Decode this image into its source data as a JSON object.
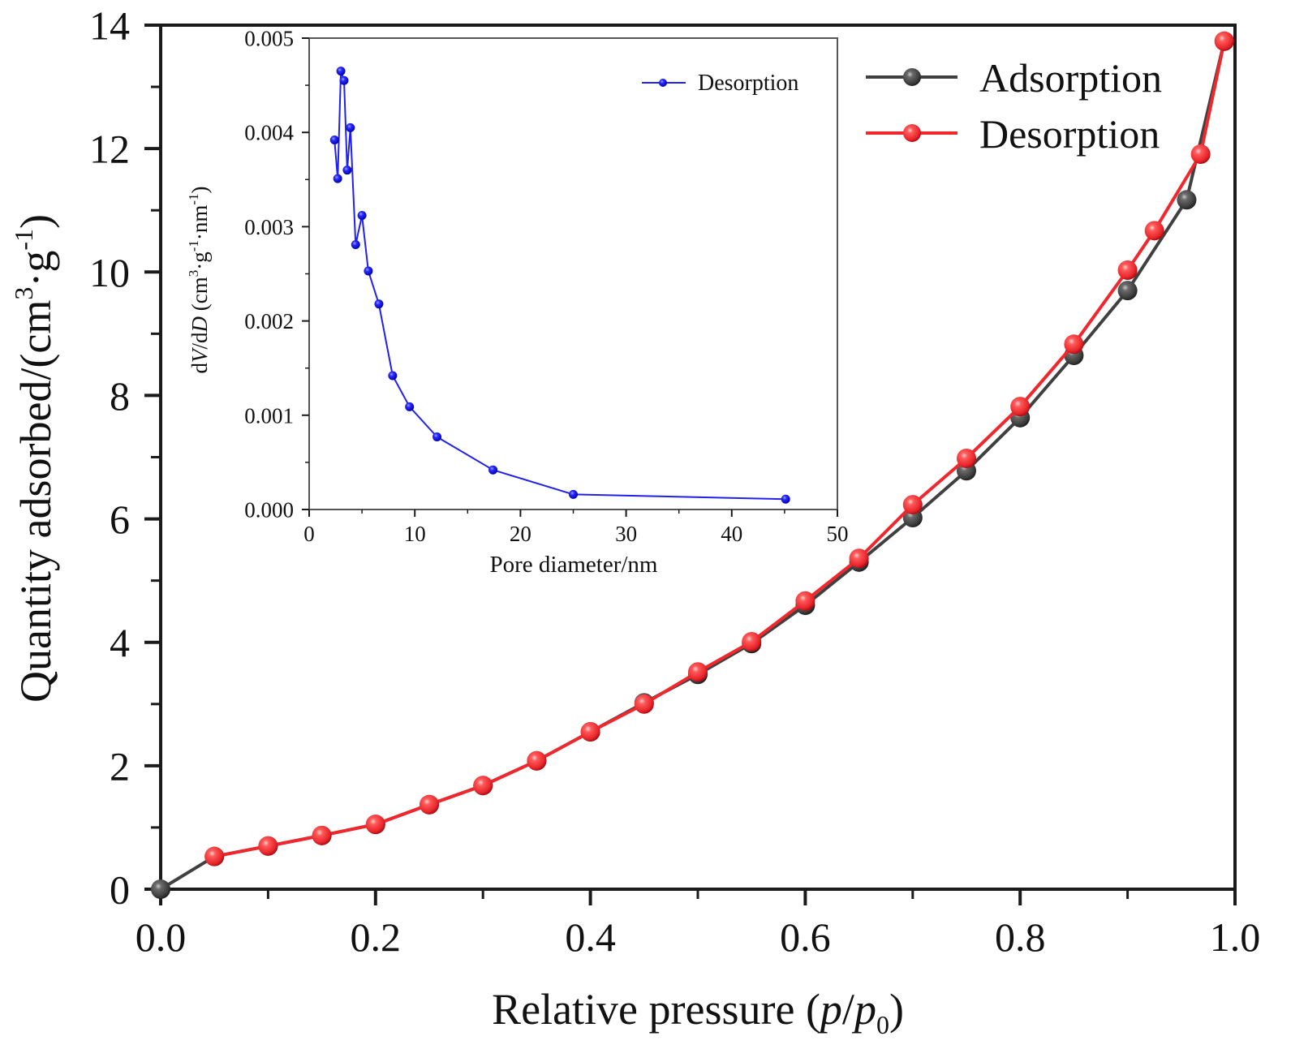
{
  "chart_data": [
    {
      "id": "main",
      "type": "line",
      "title": "",
      "xlabel": "Relative pressure (p/p0)",
      "xlabel_parts": [
        "Relative pressure (",
        "p",
        "/",
        "p",
        "0",
        ")"
      ],
      "ylabel": "Quantity adsorbed/(cm3·g-1)",
      "ylabel_parts": [
        "Quantity adsorbed/(cm",
        "3",
        "·g",
        "-1",
        ")"
      ],
      "xlim": [
        0.0,
        1.0
      ],
      "ylim": [
        0,
        14
      ],
      "xticks": [
        "0.0",
        "0.2",
        "0.4",
        "0.6",
        "0.8",
        "1.0"
      ],
      "xtick_values": [
        0.0,
        0.2,
        0.4,
        0.6,
        0.8,
        1.0
      ],
      "yticks": [
        "0",
        "2",
        "4",
        "6",
        "8",
        "10",
        "12",
        "14"
      ],
      "ytick_values": [
        0,
        2,
        4,
        6,
        8,
        10,
        12,
        14
      ],
      "grid": false,
      "legend_position": "top-right",
      "series": [
        {
          "name": "Adsorption",
          "color": "#404040",
          "x": [
            0.0,
            0.05,
            0.1,
            0.15,
            0.2,
            0.25,
            0.3,
            0.35,
            0.4,
            0.45,
            0.5,
            0.55,
            0.6,
            0.65,
            0.7,
            0.75,
            0.8,
            0.85,
            0.9,
            0.955,
            0.99
          ],
          "y": [
            0.0,
            0.53,
            0.7,
            0.87,
            1.05,
            1.37,
            1.68,
            2.08,
            2.55,
            3.02,
            3.48,
            3.98,
            4.6,
            5.3,
            6.02,
            6.78,
            7.64,
            8.65,
            9.7,
            11.17,
            13.74
          ]
        },
        {
          "name": "Desorption",
          "color": "#f0282d",
          "x": [
            0.05,
            0.1,
            0.15,
            0.2,
            0.25,
            0.3,
            0.35,
            0.4,
            0.45,
            0.5,
            0.55,
            0.6,
            0.65,
            0.7,
            0.75,
            0.8,
            0.85,
            0.9,
            0.925,
            0.968,
            0.99
          ],
          "y": [
            0.53,
            0.7,
            0.87,
            1.05,
            1.37,
            1.68,
            2.08,
            2.55,
            3.0,
            3.52,
            4.01,
            4.67,
            5.36,
            6.23,
            6.98,
            7.82,
            8.83,
            10.03,
            10.67,
            11.91,
            13.74
          ]
        }
      ]
    },
    {
      "id": "inset",
      "type": "line",
      "title": "",
      "xlabel": "Pore diameter/nm",
      "ylabel": "dV/dD (cm3·g-1·nm-1)",
      "ylabel_parts": [
        "d",
        "V",
        "/d",
        "D",
        " (cm",
        "3",
        "·g",
        "-1",
        "·nm",
        "-1",
        ")"
      ],
      "xlim": [
        0,
        50
      ],
      "ylim": [
        0.0,
        0.005
      ],
      "xticks": [
        "0",
        "10",
        "20",
        "30",
        "40",
        "50"
      ],
      "xtick_values": [
        0,
        10,
        20,
        30,
        40,
        50
      ],
      "yticks": [
        "0.000",
        "0.001",
        "0.002",
        "0.003",
        "0.004",
        "0.005"
      ],
      "ytick_values": [
        0.0,
        0.001,
        0.002,
        0.003,
        0.004,
        0.005
      ],
      "grid": false,
      "legend_position": "top-right",
      "series": [
        {
          "name": "Desorption",
          "color": "#2020f0",
          "x": [
            2.4,
            2.7,
            3.0,
            3.3,
            3.6,
            3.9,
            4.4,
            5.0,
            5.6,
            6.6,
            7.9,
            9.5,
            12.1,
            17.4,
            25.0,
            45.1
          ],
          "y": [
            0.00392,
            0.00351,
            0.00465,
            0.00455,
            0.0036,
            0.00405,
            0.00281,
            0.00312,
            0.00253,
            0.00218,
            0.00142,
            0.00109,
            0.00077,
            0.00042,
            0.00016,
            0.00011
          ]
        }
      ]
    }
  ]
}
